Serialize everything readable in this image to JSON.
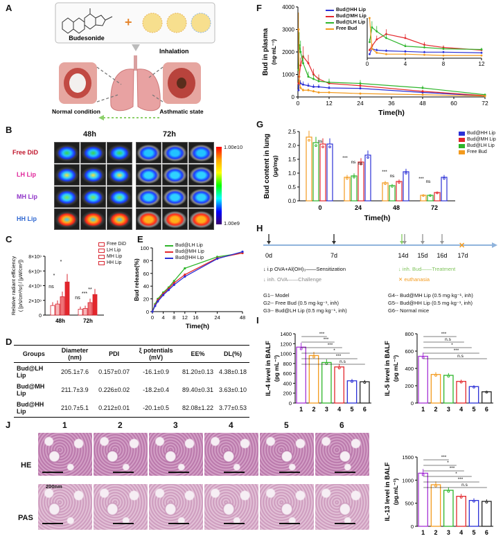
{
  "panel_labels": {
    "A": "A",
    "B": "B",
    "C": "C",
    "D": "D",
    "E": "E",
    "F": "F",
    "G": "G",
    "H": "H",
    "I": "I",
    "J": "J"
  },
  "panelA": {
    "budesonide": "Budesonide",
    "inhalation": "Inhalation",
    "normal": "Normal condition",
    "asthmatic": "Asthmatic state"
  },
  "panelB": {
    "cols": [
      "48h",
      "72h"
    ],
    "rows": [
      {
        "label": "Free DiD",
        "color": "#c0162c"
      },
      {
        "label": "LH Lip",
        "color": "#e0259a"
      },
      {
        "label": "MH Lip",
        "color": "#8f32c8"
      },
      {
        "label": "HH Lip",
        "color": "#2f67d1"
      }
    ],
    "scale_max": "1.00e10",
    "scale_min": "1.00e9"
  },
  "panelC": {
    "type": "bar",
    "ylabel_line1": "Relative radiant efficiency",
    "ylabel_line2": "( [p/s/cm²/sr] / [μW/cm²])",
    "categories": [
      "48h",
      "72h"
    ],
    "yticks": [
      "0",
      "2×10⁹",
      "4×10⁹",
      "6×10⁹",
      "8×10⁹"
    ],
    "ylim": [
      0,
      8
    ],
    "series": [
      {
        "name": "Free DiD",
        "color": "#d8242f",
        "values": [
          1.3,
          0.8
        ]
      },
      {
        "name": "LH Lip",
        "color": "#d8242f",
        "values": [
          1.5,
          0.9
        ]
      },
      {
        "name": "MH Lip",
        "color": "#d8242f",
        "values": [
          2.5,
          1.7
        ]
      },
      {
        "name": "HH Lip",
        "color": "#d8242f",
        "values": [
          4.5,
          2.8
        ]
      }
    ],
    "sig": [
      "ns",
      "*",
      "*",
      "ns",
      "***",
      "**"
    ]
  },
  "panelD": {
    "headers": [
      "Groups",
      "Diameter (nm)",
      "PDI",
      "ξ potentials (mV)",
      "EE%",
      "DL(%)"
    ],
    "rows": [
      [
        "Bud@LH Lip",
        "205.1±7.6",
        "0.157±0.07",
        "-16.1±0.9",
        "81.20±0.13",
        "4.38±0.18"
      ],
      [
        "Bud@MH Lip",
        "211.7±3.9",
        "0.226±0.02",
        "-18.2±0.4",
        "89.40±0.31",
        "3.63±0.10"
      ],
      [
        "Bud@HH Lip",
        "210.7±5.1",
        "0.212±0.01",
        "-20.1±0.5",
        "82.08±1.22",
        "3.77±0.53"
      ]
    ]
  },
  "panelE": {
    "type": "line",
    "ylabel": "Bud release(%)",
    "xlabel": "Time(h)",
    "xticks": [
      "0",
      "4",
      "8",
      "12",
      "16",
      "24",
      "48"
    ],
    "yticks": [
      "0",
      "20",
      "40",
      "60",
      "80",
      "100"
    ],
    "ylim": [
      0,
      100
    ],
    "series": [
      {
        "name": "Bud@LH Lip",
        "color": "#2db52a",
        "x": [
          0,
          1,
          2,
          4,
          6,
          8,
          12,
          24,
          48
        ],
        "y": [
          0,
          12,
          20,
          30,
          38,
          48,
          68,
          86,
          92
        ]
      },
      {
        "name": "Bud@MH Lip",
        "color": "#e3262b",
        "x": [
          0,
          1,
          2,
          4,
          6,
          8,
          12,
          24,
          48
        ],
        "y": [
          0,
          10,
          18,
          28,
          36,
          45,
          58,
          84,
          92
        ]
      },
      {
        "name": "Bud@HH Lip",
        "color": "#2a2fd6",
        "x": [
          0,
          1,
          2,
          4,
          6,
          8,
          12,
          24,
          48
        ],
        "y": [
          0,
          9,
          16,
          26,
          34,
          42,
          55,
          83,
          94
        ]
      }
    ]
  },
  "panelF": {
    "type": "line",
    "ylabel": "Bud in plasma",
    "yunit": "(ng·mL⁻¹)",
    "xlabel": "Time(h)",
    "xticks": [
      "0",
      "12",
      "24",
      "36",
      "48",
      "60",
      "72"
    ],
    "yticks": [
      "0",
      "1000",
      "2000",
      "3000",
      "4000"
    ],
    "xlim": [
      0,
      72
    ],
    "ylim": [
      0,
      4000
    ],
    "inset_xticks": [
      "0",
      "4",
      "8",
      "12"
    ],
    "inset_xlim": [
      0,
      12
    ],
    "inset_ylim": [
      0,
      3000
    ],
    "series": [
      {
        "name": "Bud@HH Lip",
        "color": "#2a2fd6",
        "x": [
          0.25,
          0.5,
          1,
          2,
          4,
          6,
          8,
          12,
          24,
          48,
          72
        ],
        "y": [
          300,
          700,
          600,
          550,
          500,
          450,
          450,
          400,
          380,
          200,
          50
        ]
      },
      {
        "name": "Bud@MH Lip",
        "color": "#e3262b",
        "x": [
          0.25,
          0.5,
          1,
          2,
          4,
          6,
          8,
          12,
          24,
          48,
          72
        ],
        "y": [
          600,
          900,
          1400,
          1800,
          1500,
          1000,
          800,
          600,
          500,
          250,
          60
        ]
      },
      {
        "name": "Bud@LH Lip",
        "color": "#2db52a",
        "x": [
          0.25,
          0.5,
          1,
          2,
          4,
          6,
          8,
          12,
          24,
          48,
          72
        ],
        "y": [
          1200,
          2300,
          2000,
          1500,
          900,
          800,
          700,
          650,
          600,
          400,
          100
        ]
      },
      {
        "name": "Free Bud",
        "color": "#f39a1d",
        "x": [
          0.25,
          0.5,
          1,
          2,
          4,
          6,
          8,
          12,
          24,
          48,
          72
        ],
        "y": [
          3000,
          700,
          400,
          300,
          300,
          250,
          200,
          200,
          150,
          100,
          40
        ]
      }
    ]
  },
  "panelG": {
    "type": "bar",
    "ylabel": "Bud content in lung",
    "yunit": "(μg/mg)",
    "xlabel": "Time(h)",
    "categories": [
      "0",
      "24",
      "48",
      "72"
    ],
    "yticks": [
      "0.0",
      "0.5",
      "1.0",
      "1.5",
      "2.0",
      "2.5"
    ],
    "ylim": [
      0,
      2.5
    ],
    "series": [
      {
        "name": "Bud@HH Lip",
        "color": "#2a2fd6",
        "values": [
          2.05,
          1.65,
          1.05,
          0.85
        ]
      },
      {
        "name": "Bud@MH Lip",
        "color": "#e3262b",
        "values": [
          2.05,
          1.4,
          0.7,
          0.3
        ]
      },
      {
        "name": "Bud@LH Lip",
        "color": "#2db52a",
        "values": [
          2.1,
          0.9,
          0.55,
          0.2
        ]
      },
      {
        "name": "Free Bud",
        "color": "#f39a1d",
        "values": [
          2.3,
          0.85,
          0.65,
          0.2
        ]
      }
    ],
    "sig": [
      "ns",
      "***",
      "ns",
      "ns",
      "***",
      "ns",
      "***",
      "ns"
    ]
  },
  "panelH": {
    "days": [
      "0d",
      "7d",
      "14d",
      "15d",
      "16d",
      "17d"
    ],
    "legend": {
      "sensitization": "i.p OVA+Al(OH)₃——Sensitization",
      "challenge": "inh. OVA——Challenge",
      "treatment": "inh. Bud——Treatment",
      "euthanasia": "euthanasia"
    },
    "groups": [
      "G1-- Model",
      "G2-- Free Bud (0.5 mg·kg⁻¹, inh)",
      "G3-- Bud@LH Lip (0.5 mg·kg⁻¹, inh)",
      "G4-- Bud@MH Lip (0.5 mg·kg⁻¹, inh)",
      "G5-- Bud@HH Lip (0.5 mg·kg⁻¹, inh)",
      "G6-- Normal mice"
    ]
  },
  "panelI": {
    "il4": {
      "type": "bar",
      "ylabel": "IL-4 level in BALF",
      "yunit": "(pg mL⁻¹)",
      "categories": [
        "1",
        "2",
        "3",
        "4",
        "5",
        "6"
      ],
      "yticks": [
        "0",
        "200",
        "400",
        "600",
        "800",
        "1000",
        "1200",
        "1400"
      ],
      "ylim": [
        0,
        1400
      ],
      "values": [
        1130,
        960,
        820,
        730,
        450,
        430
      ],
      "colors": [
        "#a633d6",
        "#f39a1d",
        "#2db52a",
        "#e3262b",
        "#2a2fd6",
        "#222222"
      ],
      "sig": [
        "***",
        "***",
        "***",
        "*",
        "***",
        "n.s"
      ]
    },
    "il5": {
      "type": "bar",
      "ylabel": "IL-5 level in BALF",
      "yunit": "(pg mL⁻¹)",
      "categories": [
        "1",
        "2",
        "3",
        "4",
        "5",
        "6"
      ],
      "yticks": [
        "0",
        "200",
        "400",
        "600",
        "800"
      ],
      "ylim": [
        0,
        800
      ],
      "values": [
        540,
        330,
        320,
        250,
        190,
        130
      ],
      "colors": [
        "#a633d6",
        "#f39a1d",
        "#2db52a",
        "#e3262b",
        "#2a2fd6",
        "#222222"
      ],
      "sig": [
        "***",
        "n.s",
        "*",
        "***",
        "n.s"
      ]
    },
    "il13": {
      "type": "bar",
      "ylabel": "IL-13 level in BALF",
      "yunit": "(pg.mL⁻¹)",
      "categories": [
        "1",
        "2",
        "3",
        "4",
        "5",
        "6"
      ],
      "yticks": [
        "0",
        "500",
        "1000",
        "1500"
      ],
      "ylim": [
        0,
        1500
      ],
      "values": [
        1150,
        900,
        780,
        650,
        560,
        540
      ],
      "colors": [
        "#a633d6",
        "#f39a1d",
        "#2db52a",
        "#e3262b",
        "#2a2fd6",
        "#222222"
      ],
      "sig": [
        "***",
        "*",
        "***",
        "*",
        "***",
        "n.s"
      ]
    }
  },
  "panelJ": {
    "cols": [
      "1",
      "2",
      "3",
      "4",
      "5",
      "6"
    ],
    "rows": [
      "HE",
      "PAS"
    ],
    "scalebar": "200nm"
  }
}
